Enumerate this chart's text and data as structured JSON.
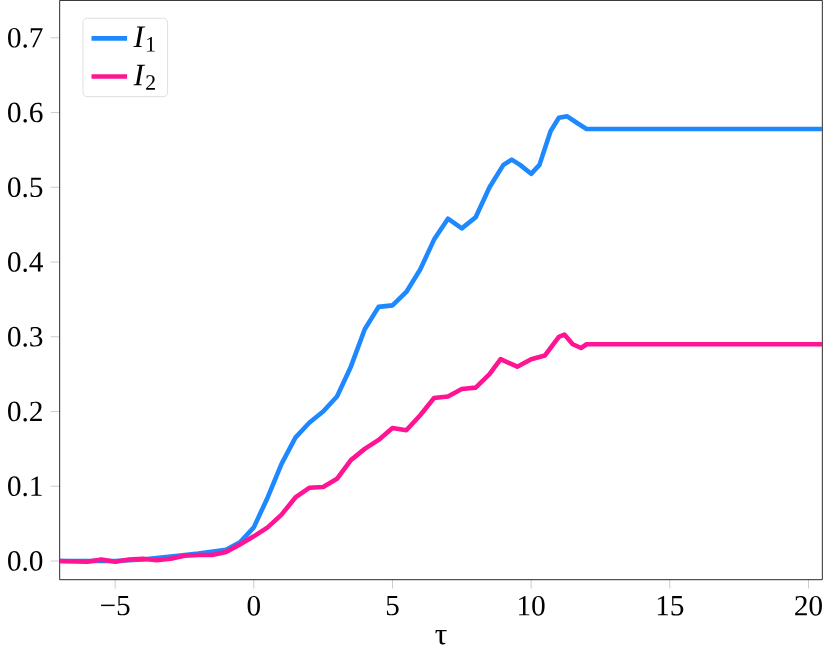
{
  "chart_data": {
    "type": "line",
    "xlabel": "τ",
    "xlim": [
      -7,
      20.5
    ],
    "ylim": [
      -0.025,
      0.75
    ],
    "xticks": [
      {
        "value": -5,
        "label": "−5"
      },
      0,
      5,
      10,
      15,
      20
    ],
    "yticks": [
      {
        "value": 0,
        "label": "0.0"
      },
      0.1,
      0.2,
      0.3,
      0.4,
      0.5,
      0.6,
      0.7
    ],
    "legend": "top left",
    "grid": false,
    "marker": "none",
    "line_style": "solid",
    "series": [
      {
        "name": "*I*$_{1}$",
        "color": "#1e88ff",
        "x": [
          -7,
          -6,
          -5,
          -4,
          -3,
          -2,
          -1,
          -0.5,
          0,
          0.5,
          1,
          1.5,
          2,
          2.5,
          3,
          3.5,
          4,
          4.5,
          5,
          5.5,
          6,
          6.5,
          7,
          7.5,
          8,
          8.5,
          9,
          9.3,
          9.6,
          10,
          10.3,
          10.7,
          11,
          11.3,
          11.7,
          12,
          20.5
        ],
        "values": [
          0,
          0,
          0,
          0.002,
          null,
          0.01,
          0.015,
          0.025,
          0.045,
          0.085,
          0.13,
          0.165,
          0.185,
          0.2,
          0.22,
          0.26,
          0.31,
          0.34,
          0.342,
          0.36,
          0.39,
          0.43,
          0.458,
          0.445,
          0.46,
          0.5,
          0.53,
          0.537,
          0.53,
          0.518,
          0.53,
          0.575,
          0.593,
          0.595,
          0.585,
          0.578,
          0.578
        ]
      },
      {
        "name": "*I*$_{2}$",
        "color": "#ff1493",
        "x": [
          -7,
          -6,
          -5.5,
          -5,
          -4.5,
          -4,
          -3.5,
          -3,
          -2.5,
          -2,
          -1.5,
          -1,
          -0.5,
          0,
          0.5,
          1,
          1.5,
          2,
          2.5,
          3,
          3.5,
          4,
          4.5,
          5,
          5.5,
          6,
          6.5,
          7,
          7.5,
          8,
          8.5,
          8.9,
          9.5,
          10,
          10.5,
          11,
          11.2,
          11.5,
          11.8,
          12,
          20.5
        ],
        "values": [
          0,
          -0.001,
          0.002,
          -0.001,
          0.002,
          0.003,
          0.001,
          0.003,
          0.007,
          0.008,
          0.008,
          0.012,
          0.022,
          0.033,
          0.045,
          0.062,
          0.085,
          0.098,
          0.099,
          0.11,
          0.135,
          0.15,
          0.162,
          0.178,
          0.175,
          0.195,
          0.218,
          0.22,
          0.23,
          0.232,
          0.25,
          0.27,
          0.26,
          0.27,
          0.275,
          0.3,
          0.303,
          0.29,
          0.285,
          0.29,
          0.29
        ]
      }
    ]
  }
}
